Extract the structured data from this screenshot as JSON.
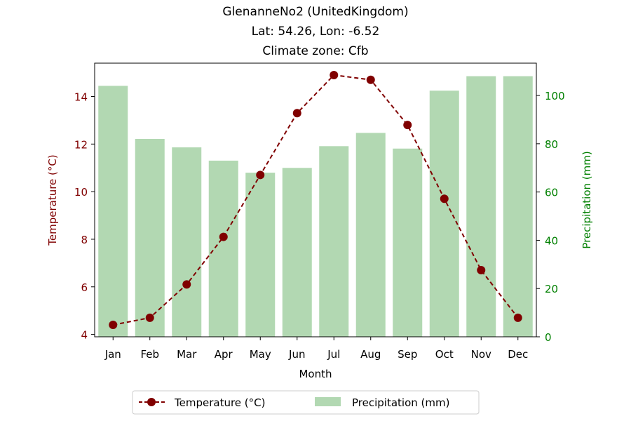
{
  "chart_data": {
    "type": "bar+line",
    "title_lines": [
      "GlenanneNo2 (UnitedKingdom)",
      "Lat: 54.26, Lon: -6.52",
      "Climate zone: Cfb"
    ],
    "xlabel": "Month",
    "categories": [
      "Jan",
      "Feb",
      "Mar",
      "Apr",
      "May",
      "Jun",
      "Jul",
      "Aug",
      "Sep",
      "Oct",
      "Nov",
      "Dec"
    ],
    "temperature": {
      "name": "Temperature (°C)",
      "axis_label": "Temperature (°C)",
      "color": "#800000",
      "values": [
        4.4,
        4.7,
        6.1,
        8.1,
        10.7,
        13.3,
        14.9,
        14.7,
        12.8,
        9.7,
        6.7,
        4.7
      ],
      "ylim": [
        3.9,
        15.4
      ],
      "ticks": [
        4,
        6,
        8,
        10,
        12,
        14
      ],
      "style": "dashed line with circle markers"
    },
    "precipitation": {
      "name": "Precipitation (mm)",
      "axis_label": "Precipitation (mm)",
      "color": "#008000",
      "bar_color": "#b2d8b2",
      "values": [
        104,
        82,
        78.5,
        73,
        68,
        70,
        79,
        84.5,
        78,
        102,
        108,
        108
      ],
      "ylim": [
        0,
        113.4
      ],
      "ticks": [
        0,
        20,
        40,
        60,
        80,
        100
      ]
    },
    "legend": {
      "placement": "bottom-center",
      "entries": [
        "Temperature (°C)",
        "Precipitation (mm)"
      ]
    }
  }
}
